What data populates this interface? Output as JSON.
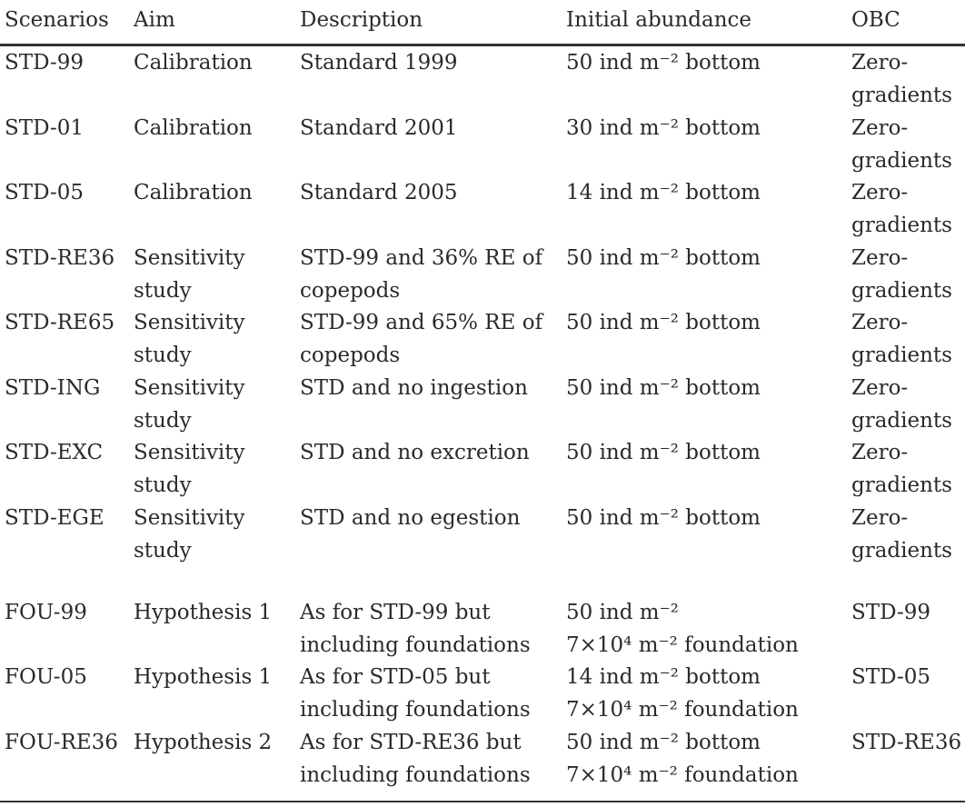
{
  "table": {
    "header": [
      "Scenarios",
      "Aim",
      "Description",
      "Initial abundance",
      "OBC"
    ],
    "rows": [
      [
        [
          "STD-99"
        ],
        [
          "Calibration"
        ],
        [
          "Standard 1999"
        ],
        [
          "50 ind m⁻² bottom"
        ],
        [
          "Zero-",
          "gradients"
        ]
      ],
      [
        [
          "STD-01"
        ],
        [
          "Calibration"
        ],
        [
          "Standard 2001"
        ],
        [
          "30 ind m⁻² bottom"
        ],
        [
          "Zero-",
          "gradients"
        ]
      ],
      [
        [
          "STD-05"
        ],
        [
          "Calibration"
        ],
        [
          "Standard 2005"
        ],
        [
          "14 ind m⁻² bottom"
        ],
        [
          "Zero-",
          "gradients"
        ]
      ],
      [
        [
          "STD-RE36"
        ],
        [
          "Sensitivity",
          "study"
        ],
        [
          "STD-99 and 36% RE of",
          "copepods"
        ],
        [
          "50 ind m⁻² bottom"
        ],
        [
          "Zero-",
          "gradients"
        ]
      ],
      [
        [
          "STD-RE65"
        ],
        [
          "Sensitivity",
          "study"
        ],
        [
          "STD-99 and 65% RE of",
          "copepods"
        ],
        [
          "50 ind m⁻² bottom"
        ],
        [
          "Zero-",
          "gradients"
        ]
      ],
      [
        [
          "STD-ING"
        ],
        [
          "Sensitivity",
          "study"
        ],
        [
          "STD and no ingestion"
        ],
        [
          "50 ind m⁻² bottom"
        ],
        [
          "Zero-",
          "gradients"
        ]
      ],
      [
        [
          "STD-EXC"
        ],
        [
          "Sensitivity",
          "study"
        ],
        [
          "STD and no excretion"
        ],
        [
          "50 ind m⁻² bottom"
        ],
        [
          "Zero-",
          "gradients"
        ]
      ],
      [
        [
          "STD-EGE"
        ],
        [
          "Sensitivity",
          "study"
        ],
        [
          "STD and no egestion"
        ],
        [
          "50 ind m⁻² bottom"
        ],
        [
          "Zero-",
          "gradients"
        ]
      ],
      [
        [
          "FOU-99"
        ],
        [
          "Hypothesis 1"
        ],
        [
          "As for STD-99 but",
          "including foundations"
        ],
        [
          "50 ind m⁻²",
          "7×10⁴ m⁻² foundation"
        ],
        [
          "STD-99"
        ]
      ],
      [
        [
          "FOU-05"
        ],
        [
          "Hypothesis 1"
        ],
        [
          "As for STD-05 but",
          "including foundations"
        ],
        [
          "14 ind m⁻² bottom",
          "7×10⁴ m⁻² foundation"
        ],
        [
          "STD-05"
        ]
      ],
      [
        [
          "FOU-RE36"
        ],
        [
          "Hypothesis 2"
        ],
        [
          "As for STD-RE36 but",
          "including foundations"
        ],
        [
          "50 ind m⁻² bottom",
          "7×10⁴ m⁻² foundation"
        ],
        [
          "STD-RE36"
        ]
      ]
    ]
  }
}
